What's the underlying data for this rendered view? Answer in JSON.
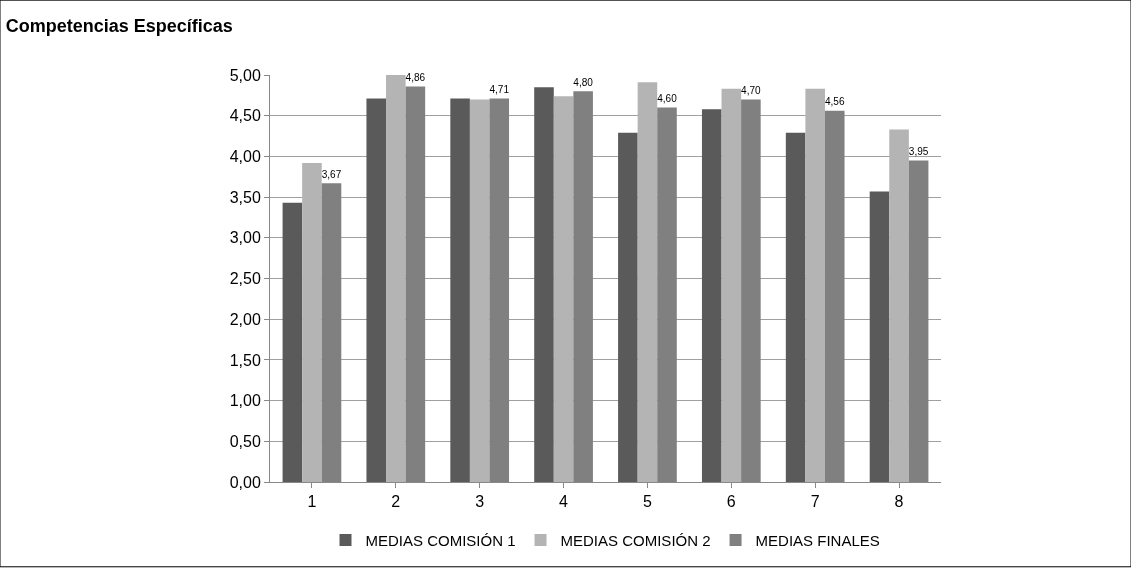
{
  "chart_data": {
    "type": "bar",
    "title": "Competencias Específicas",
    "categories": [
      "1",
      "2",
      "3",
      "4",
      "5",
      "6",
      "7",
      "8"
    ],
    "series": [
      {
        "name": "MEDIAS COMISIÓN 1",
        "color": "#5a5a5a",
        "values": [
          3.43,
          4.71,
          4.71,
          4.85,
          4.29,
          4.58,
          4.29,
          3.57
        ]
      },
      {
        "name": "MEDIAS COMISIÓN 2",
        "color": "#b4b4b4",
        "values": [
          3.92,
          5.0,
          4.7,
          4.74,
          4.91,
          4.83,
          4.83,
          4.33
        ]
      },
      {
        "name": "MEDIAS FINALES",
        "color": "#808080",
        "values": [
          3.67,
          4.86,
          4.71,
          4.8,
          4.6,
          4.7,
          4.56,
          3.95
        ],
        "value_labels": [
          "3,67",
          "4,86",
          "4,71",
          "4,80",
          "4,60",
          "4,70",
          "4,56",
          "3,95"
        ]
      }
    ],
    "ylim": [
      0,
      5
    ],
    "yticks": [
      {
        "value": 0,
        "label": "0,00"
      },
      {
        "value": 0.5,
        "label": "0,50"
      },
      {
        "value": 1,
        "label": "1,00"
      },
      {
        "value": 1.5,
        "label": "1,50"
      },
      {
        "value": 2,
        "label": "2,00"
      },
      {
        "value": 2.5,
        "label": "2,50"
      },
      {
        "value": 3,
        "label": "3,00"
      },
      {
        "value": 3.5,
        "label": "3,50"
      },
      {
        "value": 4,
        "label": "4,00"
      },
      {
        "value": 4.5,
        "label": "4,50"
      },
      {
        "value": 5,
        "label": "5,00"
      }
    ],
    "grid": "y",
    "legend": "bottom"
  }
}
